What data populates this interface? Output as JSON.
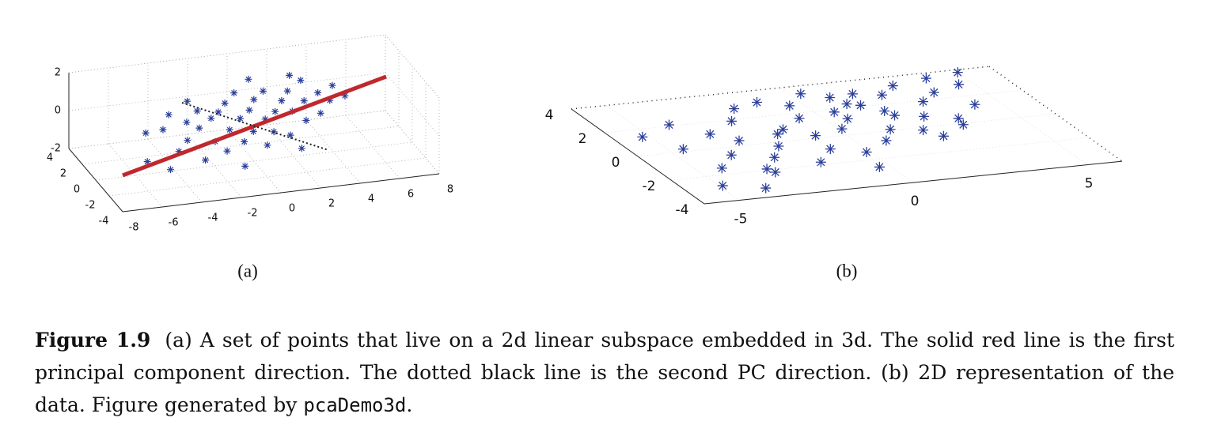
{
  "chart_data": [
    {
      "type": "scatter3d",
      "label": "(a)",
      "color": "#2b3f9a",
      "grid": true,
      "xlim": [
        -8,
        8
      ],
      "ylim": [
        -4,
        4
      ],
      "zlim": [
        -2,
        2
      ],
      "xticks": [
        -8,
        -6,
        -4,
        -2,
        0,
        2,
        4,
        6,
        8
      ],
      "yticks": [
        -4,
        -2,
        0,
        2,
        4
      ],
      "zticks": [
        -2,
        0,
        2
      ],
      "x": [
        -5.8,
        -5.2,
        -4.9,
        -4.5,
        -4.1,
        -3.8,
        -3.5,
        -3.2,
        -3,
        -2.7,
        -2.5,
        -2.2,
        -2,
        -1.8,
        -1.5,
        -1.3,
        -1,
        -0.8,
        -0.6,
        -0.4,
        -0.2,
        0,
        0.2,
        0.4,
        0.6,
        0.8,
        1,
        1.2,
        1.5,
        1.7,
        2,
        2.2,
        2.5,
        2.8,
        3,
        3.3,
        3.6,
        4,
        4.4,
        4.8,
        -1.2,
        0.5,
        1.8,
        -2.8,
        2.6
      ],
      "y": [
        -1.2,
        0.8,
        -2,
        0.3,
        -0.9,
        1.5,
        -0.4,
        0.6,
        -1.6,
        0.2,
        1.1,
        -0.7,
        0.5,
        -1.3,
        0.9,
        -0.2,
        1.4,
        -0.9,
        0.3,
        1.8,
        -0.5,
        0.7,
        -1.4,
        1.2,
        0.1,
        -0.6,
        1.6,
        0.4,
        -1,
        0.9,
        0.2,
        1.5,
        -0.4,
        0.8,
        1.9,
        -0.2,
        1.1,
        0.5,
        1.3,
        0.6,
        -2.2,
        2.3,
        -1.8,
        1.7,
        2.4
      ],
      "z": [
        -0.8,
        -0.2,
        -1,
        0.1,
        -0.6,
        0.3,
        -0.3,
        0.2,
        -0.9,
        0,
        0.5,
        -0.4,
        0.3,
        -0.7,
        0.4,
        -0.1,
        0.6,
        -0.5,
        0.2,
        0.9,
        -0.2,
        0.4,
        -0.6,
        0.7,
        0.1,
        -0.3,
        0.9,
        0.3,
        -0.4,
        0.6,
        0.3,
        0.8,
        0,
        0.5,
        1.1,
        0.2,
        0.7,
        0.5,
        0.9,
        0.6,
        -1.2,
        1.3,
        -0.8,
        0.8,
        1.2
      ]
    },
    {
      "type": "scatter",
      "label": "(b)",
      "color": "#2b3f9a",
      "xlim": [
        -6,
        6
      ],
      "ylim": [
        -4,
        4
      ],
      "xticks": [
        -5,
        0,
        5
      ],
      "yticks": [
        -4,
        -2,
        0,
        2,
        4
      ],
      "x": [
        -5.2,
        -4.9,
        -4.6,
        -4.3,
        -4.1,
        -3.9,
        -3.6,
        -3.4,
        -3.1,
        -2.9,
        -2.6,
        -2.4,
        -2.1,
        -1.9,
        -1.6,
        -1.4,
        -1.1,
        -0.9,
        -0.6,
        -0.4,
        -0.1,
        0.1,
        0.3,
        0.6,
        0.8,
        1.1,
        1.3,
        1.6,
        1.8,
        2.1,
        2.3,
        2.6,
        2.9,
        3.1,
        3.4,
        3.7,
        4,
        4.3,
        4.6,
        5,
        -0.3,
        0.5,
        1.4,
        -1.7,
        2.4,
        -3.2,
        0.9,
        1.9,
        -0.8,
        3.3
      ],
      "y": [
        1.4,
        -2.8,
        0.2,
        -1.5,
        2.1,
        -3.3,
        -0.6,
        1.1,
        -2.2,
        0.4,
        -1.1,
        1.9,
        -0.3,
        2.8,
        -1.8,
        0.9,
        3.1,
        -0.9,
        1.6,
        2.6,
        -1.4,
        0.5,
        3.4,
        1.2,
        -0.7,
        2.3,
        0.1,
        3,
        1.5,
        -0.2,
        2.7,
        0.8,
        3.3,
        1.9,
        0.4,
        2.5,
        3.6,
        1.3,
        2.9,
        3.8,
        -2.6,
        1.8,
        2.1,
        0.6,
        -0.8,
        -1.9,
        2.9,
        1.1,
        0.2,
        -0.1
      ]
    }
  ],
  "caption": {
    "label": "Figure 1.9",
    "text": "(a) A set of points that live on a 2d linear subspace embedded in 3d. The solid red line is the first principal component direction. The dotted black line is the second PC direction. (b) 2D representation of the data. Figure generated by",
    "code": "pcaDemo3d",
    "end": "."
  }
}
